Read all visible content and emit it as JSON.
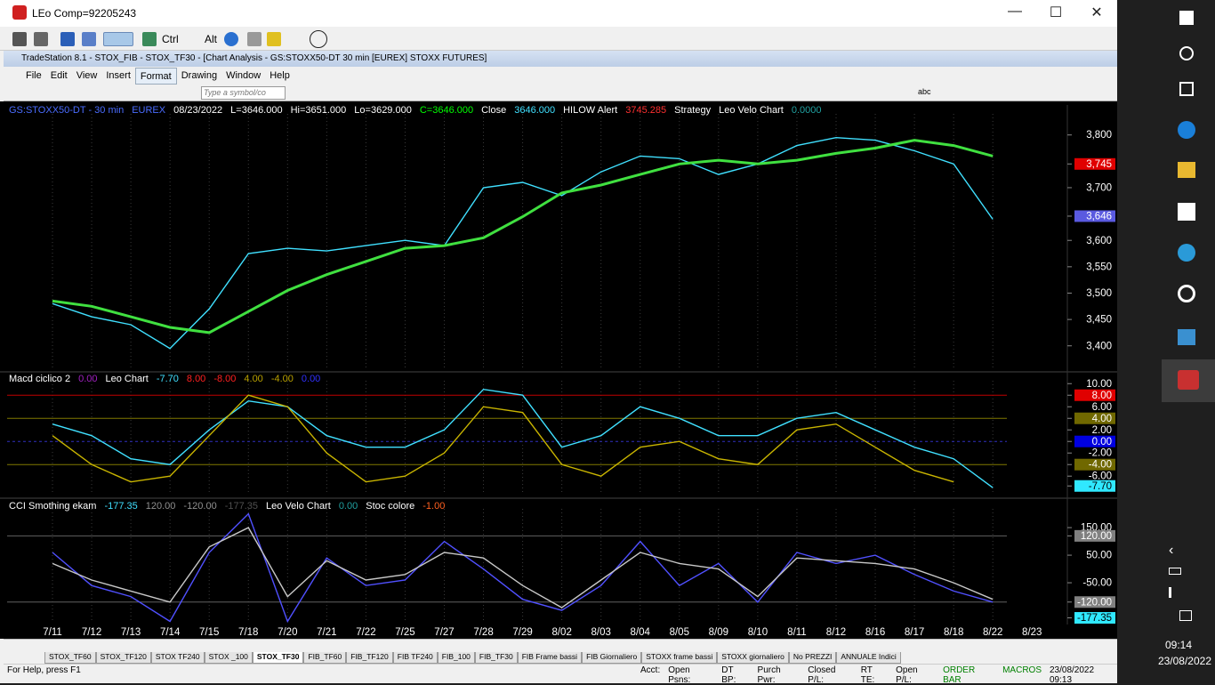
{
  "window": {
    "title": "LEo Comp=92205243"
  },
  "toolbar": {
    "ctrl": "Ctrl",
    "alt": "Alt"
  },
  "app": {
    "title": "TradeStation 8.1 - STOX_FIB - STOX_TF30 - [Chart Analysis - GS:STOXX50-DT  30 min  [EUREX] STOXX FUTURES]",
    "menu": [
      "File",
      "Edit",
      "View",
      "Insert",
      "Format",
      "Drawing",
      "Window",
      "Help"
    ],
    "symbol_box": "Type a symbol/co",
    "text_tool": "abc"
  },
  "chart_data": [
    {
      "type": "line",
      "legend": [
        {
          "text": "GS:STOXX50-DT - 30 min",
          "color": "#4a6cff"
        },
        {
          "text": "EUREX",
          "color": "#4a6cff"
        },
        {
          "text": "08/23/2022",
          "color": "#ffffff"
        },
        {
          "text": "L=3646.000",
          "color": "#ffffff"
        },
        {
          "text": "Hi=3651.000",
          "color": "#ffffff"
        },
        {
          "text": "Lo=3629.000",
          "color": "#ffffff"
        },
        {
          "text": "C=3646.000",
          "color": "#00ff00"
        },
        {
          "text": "Close",
          "color": "#ffffff"
        },
        {
          "text": "3646.000",
          "color": "#40e0ff"
        },
        {
          "text": "HILOW Alert",
          "color": "#ffffff"
        },
        {
          "text": "3745.285",
          "color": "#ff3030"
        },
        {
          "text": "Strategy",
          "color": "#ffffff"
        },
        {
          "text": "Leo Velo Chart",
          "color": "#ffffff"
        },
        {
          "text": "0.0000",
          "color": "#20a0a0"
        }
      ],
      "ylim": [
        3354,
        3840
      ],
      "yticks": [
        {
          "value": 3800,
          "label": "3,800"
        },
        {
          "value": 3745,
          "label": "3,745",
          "bg": "#e00000"
        },
        {
          "value": 3700,
          "label": "3,700"
        },
        {
          "value": 3646,
          "label": "3,646",
          "bg": "#5a5ae0"
        },
        {
          "value": 3600,
          "label": "3,600"
        },
        {
          "value": 3550,
          "label": "3,550"
        },
        {
          "value": 3500,
          "label": "3,500"
        },
        {
          "value": 3450,
          "label": "3,450"
        },
        {
          "value": 3400,
          "label": "3,400"
        }
      ],
      "series": [
        {
          "name": "Close",
          "color": "#40e0ff",
          "values": [
            3480,
            3455,
            3440,
            3395,
            3470,
            3575,
            3585,
            3580,
            3590,
            3600,
            3590,
            3700,
            3710,
            3685,
            3730,
            3760,
            3755,
            3725,
            3745,
            3780,
            3795,
            3790,
            3770,
            3745,
            3640,
            null
          ]
        },
        {
          "name": "Strategy",
          "color": "#40e040",
          "values": [
            3485,
            3475,
            3455,
            3435,
            3425,
            3465,
            3505,
            3535,
            3560,
            3585,
            3590,
            3605,
            3645,
            3690,
            3705,
            3725,
            3745,
            3752,
            3745,
            3752,
            3765,
            3775,
            3790,
            3780,
            3760,
            null
          ]
        }
      ]
    },
    {
      "type": "line",
      "legend": [
        {
          "text": "Macd ciclico 2",
          "color": "#ffffff"
        },
        {
          "text": "0.00",
          "color": "#a020c0"
        },
        {
          "text": "Leo Chart",
          "color": "#ffffff"
        },
        {
          "text": "-7.70",
          "color": "#40e0ff"
        },
        {
          "text": "8.00",
          "color": "#ff2020"
        },
        {
          "text": "-8.00",
          "color": "#ff2020"
        },
        {
          "text": "4.00",
          "color": "#b8a000"
        },
        {
          "text": "-4.00",
          "color": "#b8a000"
        },
        {
          "text": "0.00",
          "color": "#3030ff"
        }
      ],
      "ylim": [
        -9.2,
        10.5
      ],
      "yticks": [
        {
          "value": 10,
          "label": "10.00"
        },
        {
          "value": 8,
          "label": "8.00",
          "bg": "#e00000",
          "line": "#c00000"
        },
        {
          "value": 6,
          "label": "6.00"
        },
        {
          "value": 4,
          "label": "4.00",
          "bg": "#706800",
          "line": "#807800"
        },
        {
          "value": 2,
          "label": "2.00"
        },
        {
          "value": 0,
          "label": "0.00",
          "bg": "#0000e0",
          "line": "#3030c0"
        },
        {
          "value": -2,
          "label": "-2.00"
        },
        {
          "value": -4,
          "label": "-4.00",
          "bg": "#706800",
          "line": "#807800"
        },
        {
          "value": -6,
          "label": "-6.00"
        },
        {
          "value": -7.7,
          "label": "-7.70",
          "bg": "#30e8ff"
        }
      ],
      "series": [
        {
          "name": "Leo Chart",
          "color": "#40e0ff",
          "values": [
            3,
            1,
            -3,
            -4,
            2,
            7,
            6,
            1,
            -1,
            -1,
            2,
            9,
            8,
            -1,
            1,
            6,
            4,
            1,
            1,
            4,
            5,
            2,
            -1,
            -3,
            -8,
            null
          ]
        },
        {
          "name": "Macd ciclico 2",
          "color": "#c8b400",
          "values": [
            1,
            -4,
            -7,
            -6,
            1,
            8,
            6,
            -2,
            -7,
            -6,
            -2,
            6,
            5,
            -4,
            -6,
            -1,
            0,
            -3,
            -4,
            2,
            3,
            -1,
            -5,
            -7,
            null,
            null
          ]
        }
      ]
    },
    {
      "type": "line",
      "legend": [
        {
          "text": "CCI Smothing ekam",
          "color": "#ffffff"
        },
        {
          "text": "-177.35",
          "color": "#40e0ff"
        },
        {
          "text": "120.00",
          "color": "#909090"
        },
        {
          "text": "-120.00",
          "color": "#909090"
        },
        {
          "text": "-177.35",
          "color": "#505050"
        },
        {
          "text": "Leo Velo Chart",
          "color": "#ffffff"
        },
        {
          "text": "0.00",
          "color": "#20a0a0"
        },
        {
          "text": "Stoc colore",
          "color": "#ffffff"
        },
        {
          "text": "-1.00",
          "color": "#ff6020"
        }
      ],
      "ylim": [
        -195,
        218
      ],
      "yticks": [
        {
          "value": 150,
          "label": "150.00"
        },
        {
          "value": 120,
          "label": "120.00",
          "bg": "#808080",
          "line": "#606060"
        },
        {
          "value": 50,
          "label": "50.00"
        },
        {
          "value": -50,
          "label": "-50.00"
        },
        {
          "value": -120,
          "label": "-120.00",
          "bg": "#808080",
          "line": "#606060"
        },
        {
          "value": -177.35,
          "label": "-177.35",
          "bg": "#30e8ff"
        }
      ],
      "categories": [
        "7/11",
        "7/12",
        "7/13",
        "7/14",
        "7/15",
        "7/18",
        "7/20",
        "7/21",
        "7/22",
        "7/25",
        "7/27",
        "7/28",
        "7/29",
        "8/02",
        "8/03",
        "8/04",
        "8/05",
        "8/09",
        "8/10",
        "8/11",
        "8/12",
        "8/16",
        "8/17",
        "8/18",
        "8/22",
        "8/23"
      ],
      "series": [
        {
          "name": "CCI Smothing ekam",
          "color": "#5050ff",
          "values": [
            60,
            -60,
            -100,
            -190,
            60,
            200,
            -190,
            40,
            -60,
            -40,
            100,
            0,
            -110,
            -150,
            -60,
            100,
            -60,
            20,
            -120,
            60,
            20,
            50,
            -20,
            -80,
            -120,
            null
          ]
        },
        {
          "name": "Leo Velo Chart",
          "color": "#c8c8c8",
          "values": [
            20,
            -40,
            -80,
            -120,
            80,
            150,
            -100,
            30,
            -40,
            -20,
            60,
            40,
            -60,
            -140,
            -40,
            60,
            20,
            0,
            -100,
            40,
            30,
            20,
            0,
            -50,
            -110,
            null
          ]
        }
      ]
    }
  ],
  "tabs": [
    "STOX_TF60",
    "STOX_TF120",
    "STOX TF240",
    "STOX _100",
    "STOX_TF30",
    "FIB_TF60",
    "FIB_TF120",
    "FIB TF240",
    "FIB_100",
    "FIB_TF30",
    "FIB Frame bassi",
    "FIB Giornaliero",
    "STOXX frame bassi",
    "STOXX giornaliero",
    "No PREZZI",
    "ANNUALE Indici"
  ],
  "status": {
    "help": "For Help, press F1",
    "fields": [
      "Acct:",
      "Open Psns:",
      "DT BP:",
      "Purch Pwr:",
      "Closed P/L:",
      "RT TE:",
      "Open P/L:"
    ],
    "order_bar": "ORDER BAR",
    "macros": "MACROS",
    "datetime": "23/08/2022 09:13"
  },
  "taskbar": {
    "time": "09:14",
    "date": "23/08/2022"
  }
}
